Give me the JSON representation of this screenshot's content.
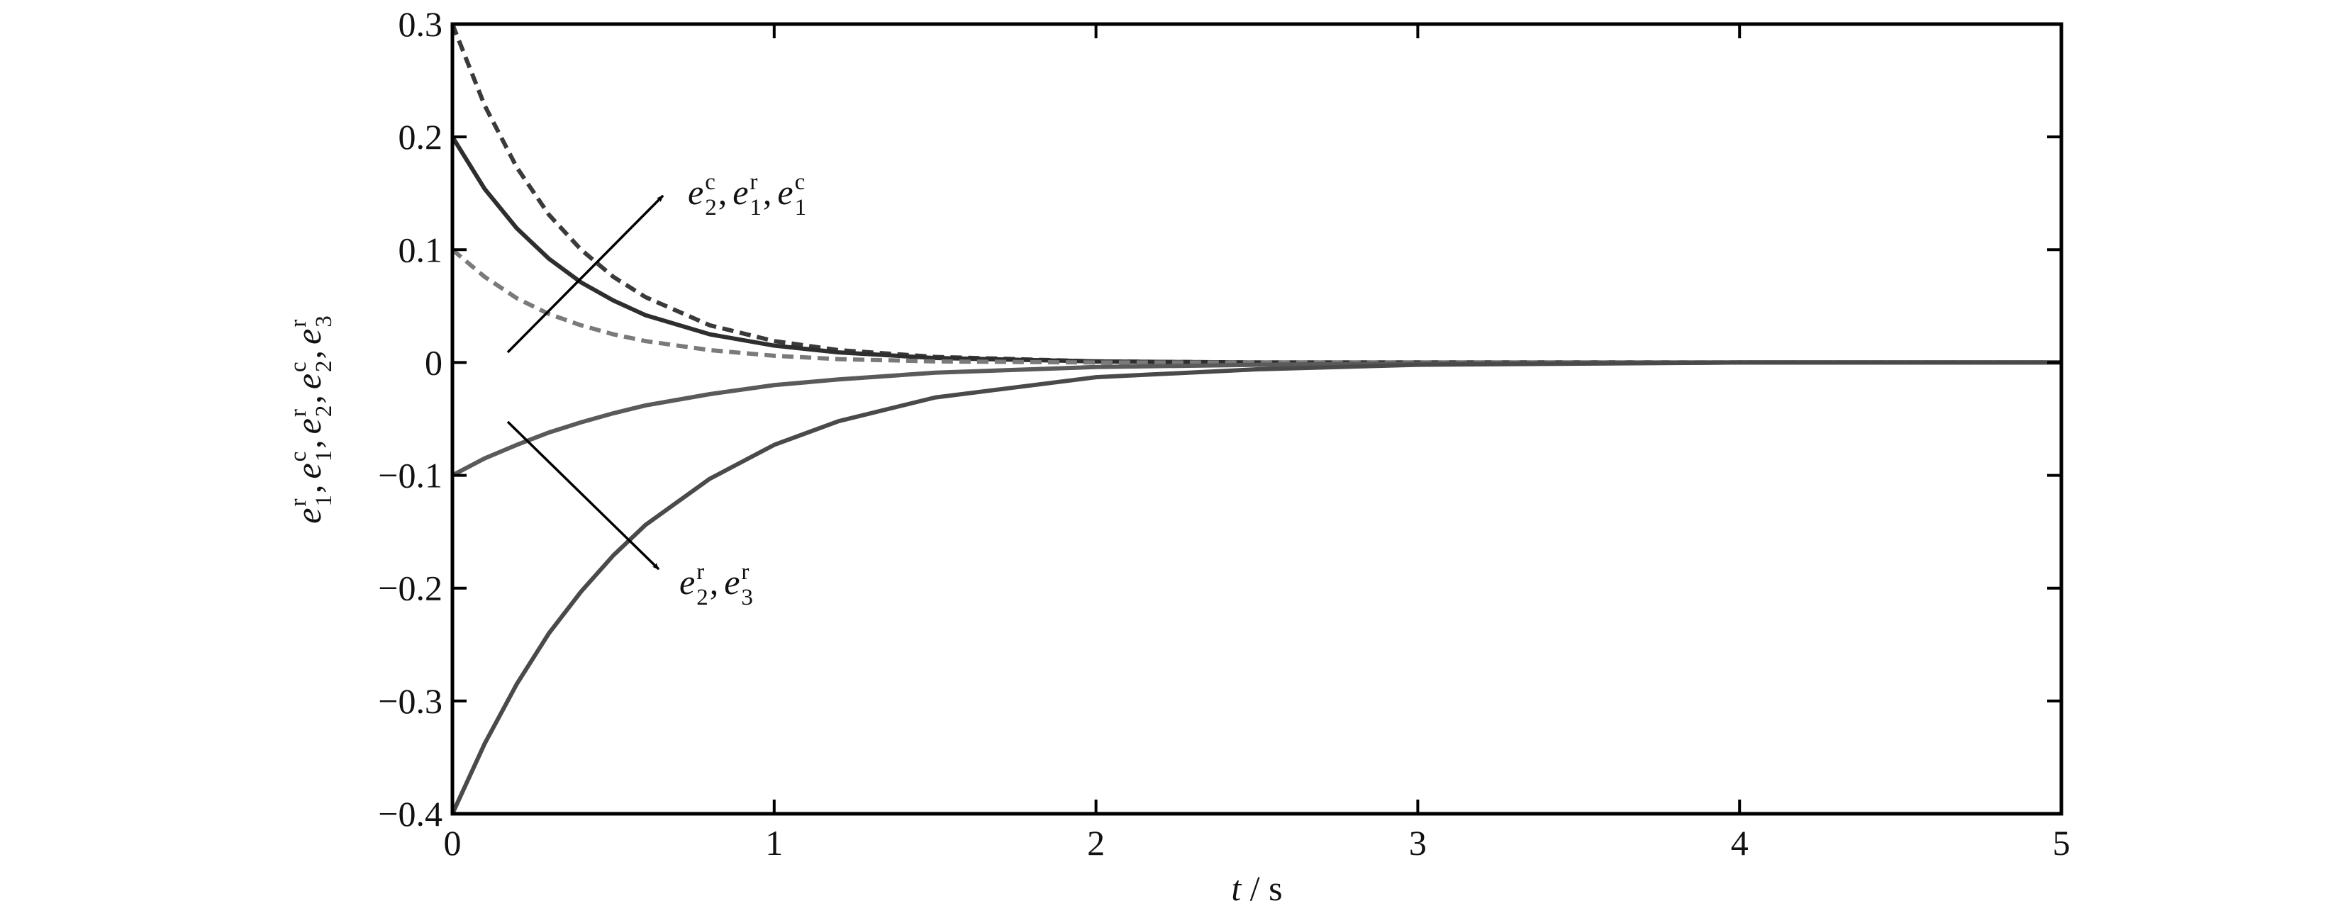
{
  "chart_data": {
    "type": "line",
    "x": [
      0,
      0.1,
      0.2,
      0.3,
      0.4,
      0.5,
      0.6,
      0.8,
      1.0,
      1.2,
      1.5,
      2,
      2.5,
      3,
      4,
      5
    ],
    "series": [
      {
        "color": "#3a3a3a",
        "dash": true,
        "values": [
          0.3,
          0.228,
          0.173,
          0.131,
          0.1,
          0.076,
          0.058,
          0.033,
          0.019,
          0.011,
          0.005,
          0.001,
          0,
          0,
          0,
          0
        ]
      },
      {
        "color": "#2e2e2e",
        "dash": false,
        "values": [
          0.2,
          0.154,
          0.119,
          0.092,
          0.071,
          0.055,
          0.042,
          0.025,
          0.015,
          0.009,
          0.004,
          0.001,
          0,
          0,
          0,
          0
        ]
      },
      {
        "color": "#7a7a7a",
        "dash": true,
        "values": [
          0.1,
          0.076,
          0.057,
          0.043,
          0.033,
          0.025,
          0.019,
          0.011,
          0.006,
          0.003,
          0.001,
          0,
          0,
          0,
          0,
          0
        ]
      },
      {
        "color": "#5a5a5a",
        "dash": false,
        "values": [
          -0.1,
          -0.085,
          -0.073,
          -0.062,
          -0.053,
          -0.045,
          -0.038,
          -0.028,
          -0.02,
          -0.015,
          -0.009,
          -0.004,
          -0.002,
          -0.001,
          0,
          0
        ]
      },
      {
        "color": "#4a4a4a",
        "dash": false,
        "values": [
          -0.4,
          -0.338,
          -0.285,
          -0.24,
          -0.203,
          -0.171,
          -0.144,
          -0.103,
          -0.073,
          -0.052,
          -0.031,
          -0.013,
          -0.006,
          -0.002,
          0,
          0
        ]
      }
    ],
    "xlim": [
      0,
      5
    ],
    "ylim": [
      -0.4,
      0.3
    ],
    "xticks": [
      0,
      1,
      2,
      3,
      4,
      5
    ],
    "yticks": [
      {
        "value": -0.4,
        "label": "−0.4"
      },
      {
        "value": -0.3,
        "label": "−0.3"
      },
      {
        "value": -0.2,
        "label": "−0.2"
      },
      {
        "value": -0.1,
        "label": "−0.1"
      },
      0,
      0.1,
      0.2,
      0.3
    ],
    "xlabel": {
      "symbol": "t",
      "separator": "/",
      "unit": "s"
    },
    "ylabel": {
      "separator": ",",
      "terms": [
        {
          "base": "e",
          "sup": "r",
          "sub": "1"
        },
        {
          "base": "e",
          "sup": "c",
          "sub": "1"
        },
        {
          "base": "e",
          "sup": "r",
          "sub": "2"
        },
        {
          "base": "e",
          "sup": "c",
          "sub": "2"
        },
        {
          "base": "e",
          "sup": "r",
          "sub": "3"
        }
      ]
    },
    "annotations": [
      {
        "separator": ",",
        "terms": [
          {
            "base": "e",
            "sup": "c",
            "sub": "2"
          },
          {
            "base": "e",
            "sup": "r",
            "sub": "1"
          },
          {
            "base": "e",
            "sup": "c",
            "sub": "1"
          }
        ]
      },
      {
        "separator": ",",
        "terms": [
          {
            "base": "e",
            "sup": "r",
            "sub": "2"
          },
          {
            "base": "e",
            "sup": "r",
            "sub": "3"
          }
        ]
      }
    ]
  }
}
